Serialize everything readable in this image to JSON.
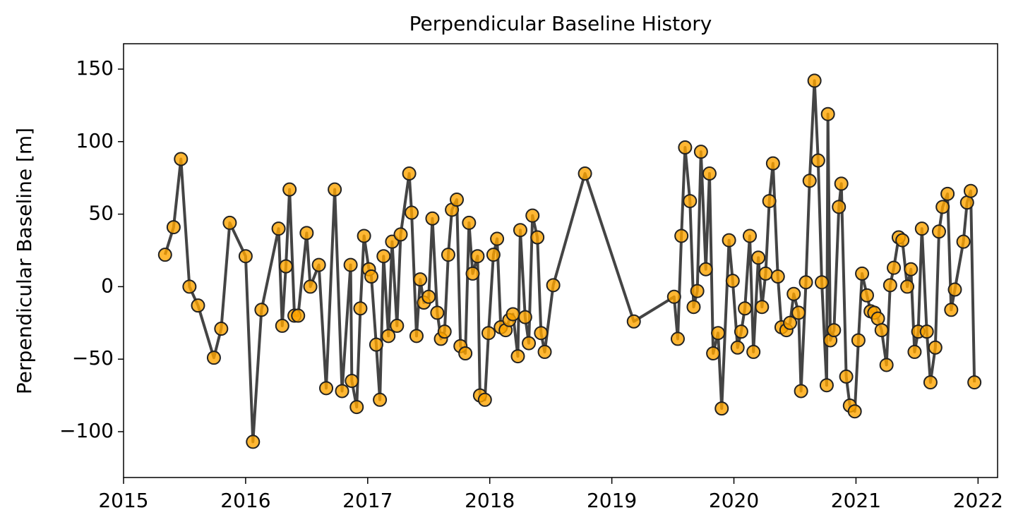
{
  "chart_data": {
    "type": "line",
    "title": "Perpendicular Baseline History",
    "ylabel": "Perpendicular Baseline [m]",
    "color": "#ffa500",
    "line_color": "#444444",
    "xlim": [
      2015.0,
      2022.16
    ],
    "xticks": [
      2015,
      2016,
      2017,
      2018,
      2019,
      2020,
      2021,
      2022
    ],
    "ylim": [
      -131.6,
      167.5
    ],
    "yticks": [
      {
        "value": -100,
        "label": "−100"
      },
      {
        "value": -50,
        "label": "−50"
      },
      0,
      50,
      100,
      150
    ],
    "x": [
      2015.34,
      2015.41,
      2015.47,
      2015.54,
      2015.61,
      2015.74,
      2015.8,
      2015.87,
      2016.0,
      2016.06,
      2016.13,
      2016.27,
      2016.3,
      2016.33,
      2016.36,
      2016.4,
      2016.43,
      2016.5,
      2016.53,
      2016.6,
      2016.66,
      2016.73,
      2016.79,
      2016.86,
      2016.87,
      2016.91,
      2016.94,
      2016.97,
      2017.01,
      2017.03,
      2017.07,
      2017.1,
      2017.13,
      2017.17,
      2017.2,
      2017.24,
      2017.27,
      2017.34,
      2017.36,
      2017.4,
      2017.43,
      2017.46,
      2017.5,
      2017.53,
      2017.57,
      2017.6,
      2017.63,
      2017.66,
      2017.69,
      2017.73,
      2017.76,
      2017.8,
      2017.83,
      2017.86,
      2017.9,
      2017.92,
      2017.96,
      2017.99,
      2018.03,
      2018.06,
      2018.09,
      2018.13,
      2018.16,
      2018.19,
      2018.23,
      2018.25,
      2018.29,
      2018.32,
      2018.35,
      2018.39,
      2018.42,
      2018.45,
      2018.52,
      2018.78,
      2019.18,
      2019.51,
      2019.54,
      2019.57,
      2019.6,
      2019.64,
      2019.67,
      2019.7,
      2019.73,
      2019.77,
      2019.8,
      2019.83,
      2019.87,
      2019.9,
      2019.96,
      2019.99,
      2020.03,
      2020.06,
      2020.09,
      2020.13,
      2020.16,
      2020.2,
      2020.23,
      2020.26,
      2020.29,
      2020.32,
      2020.36,
      2020.39,
      2020.43,
      2020.46,
      2020.49,
      2020.53,
      2020.55,
      2020.59,
      2020.62,
      2020.66,
      2020.69,
      2020.72,
      2020.76,
      2020.77,
      2020.79,
      2020.82,
      2020.86,
      2020.88,
      2020.92,
      2020.95,
      2020.99,
      2021.02,
      2021.05,
      2021.09,
      2021.12,
      2021.15,
      2021.18,
      2021.21,
      2021.25,
      2021.28,
      2021.31,
      2021.35,
      2021.38,
      2021.42,
      2021.45,
      2021.48,
      2021.51,
      2021.54,
      2021.58,
      2021.61,
      2021.65,
      2021.68,
      2021.71,
      2021.75,
      2021.78,
      2021.81,
      2021.88,
      2021.91,
      2021.94,
      2021.97
    ],
    "values": [
      22,
      41,
      88,
      0,
      -13,
      -49,
      -29,
      44,
      21,
      -107,
      -16,
      40,
      -27,
      14,
      67,
      -20,
      -20,
      37,
      0,
      15,
      -70,
      67,
      -72,
      15,
      -65,
      -83,
      -15,
      35,
      12,
      7,
      -40,
      -78,
      21,
      -34,
      31,
      -27,
      36,
      78,
      51,
      -34,
      5,
      -11,
      -7,
      47,
      -18,
      -36,
      -31,
      22,
      53,
      60,
      -41,
      -46,
      44,
      9,
      21,
      -75,
      -78,
      -32,
      22,
      33,
      -28,
      -30,
      -23,
      -19,
      -48,
      39,
      -21,
      -39,
      49,
      34,
      -32,
      -45,
      1,
      78,
      -24,
      -7,
      -36,
      35,
      96,
      59,
      -14,
      -3,
      93,
      12,
      78,
      -46,
      -32,
      -84,
      32,
      4,
      -42,
      -31,
      -15,
      35,
      -45,
      20,
      -14,
      9,
      59,
      85,
      7,
      -28,
      -30,
      -25,
      -5,
      -18,
      -72,
      3,
      73,
      142,
      87,
      3,
      -68,
      119,
      -37,
      -30,
      55,
      71,
      -62,
      -82,
      -86,
      -37,
      9,
      -6,
      -17,
      -18,
      -22,
      -30,
      -54,
      1,
      13,
      34,
      32,
      0,
      12,
      -45,
      -31,
      40,
      -31,
      -66,
      -42,
      38,
      55,
      64,
      -16,
      -2,
      31,
      58,
      66,
      -66
    ]
  }
}
